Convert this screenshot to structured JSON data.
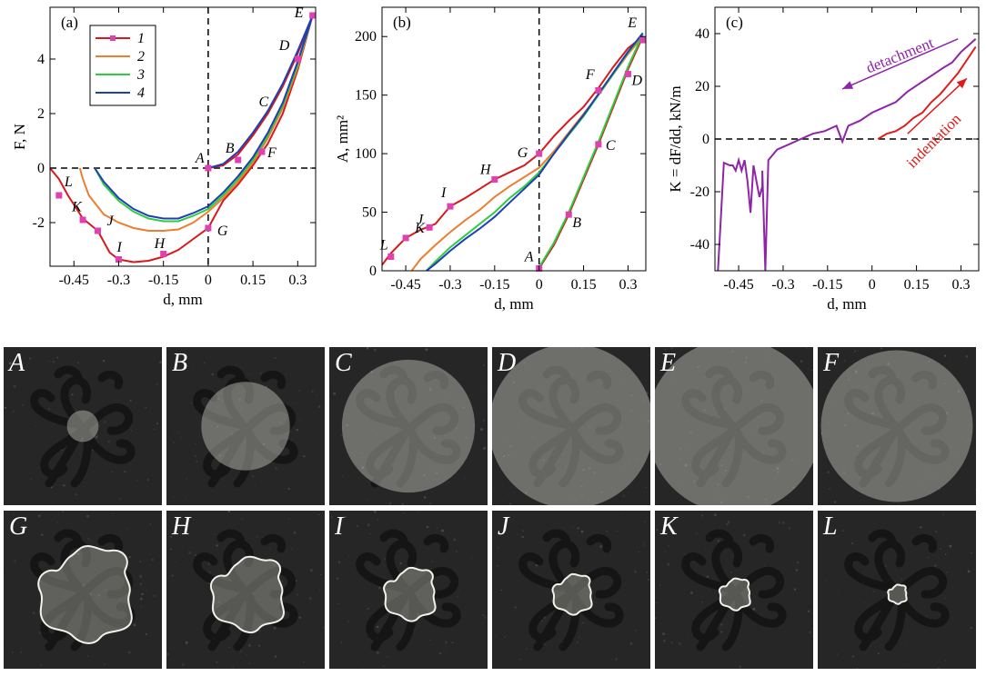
{
  "chart_data": [
    {
      "id": "a",
      "type": "line",
      "panel_label": "(a)",
      "xlabel": "d, mm",
      "ylabel": "F, N",
      "xlim": [
        -0.53,
        0.36
      ],
      "ylim": [
        -3.6,
        5.9
      ],
      "xticks": [
        -0.45,
        -0.3,
        -0.15,
        0,
        0.15,
        0.3
      ],
      "xtick_labels": [
        "-0.45",
        "-0.3",
        "-0.15",
        "0",
        "0.15",
        "0.3"
      ],
      "yticks": [
        -2,
        0,
        2,
        4
      ],
      "ytick_labels": [
        "-2",
        "0",
        "2",
        "4"
      ],
      "legend": {
        "position": "top-left",
        "entries": [
          "1",
          "2",
          "3",
          "4"
        ]
      },
      "series": [
        {
          "name": "1",
          "color": "#d7191c",
          "markers": true,
          "x": [
            0,
            0.05,
            0.1,
            0.15,
            0.2,
            0.25,
            0.3,
            0.35,
            0.35,
            0.3,
            0.25,
            0.2,
            0.15,
            0.1,
            0.05,
            0,
            -0.05,
            -0.1,
            -0.15,
            -0.2,
            -0.25,
            -0.3,
            -0.33,
            -0.37,
            -0.42,
            -0.47,
            -0.5,
            -0.53
          ],
          "y": [
            0,
            0.1,
            0.5,
            1.2,
            2.0,
            3.0,
            4.2,
            5.6,
            5.6,
            3.6,
            2.0,
            0.9,
            0.1,
            -0.6,
            -1.2,
            -2.2,
            -2.6,
            -3.0,
            -3.25,
            -3.4,
            -3.45,
            -3.35,
            -3.1,
            -2.3,
            -1.85,
            -1.0,
            -0.4,
            0
          ]
        },
        {
          "name": "2",
          "color": "#ed7d31",
          "markers": false,
          "x": [
            0.35,
            0.3,
            0.25,
            0.2,
            0.15,
            0.1,
            0.05,
            0,
            -0.05,
            -0.1,
            -0.15,
            -0.2,
            -0.25,
            -0.3,
            -0.35,
            -0.4,
            -0.42,
            -0.43
          ],
          "y": [
            5.6,
            3.7,
            2.2,
            1.1,
            0.2,
            -0.5,
            -1.1,
            -1.6,
            -2.0,
            -2.25,
            -2.3,
            -2.3,
            -2.2,
            -2.0,
            -1.7,
            -1.0,
            -0.4,
            0
          ]
        },
        {
          "name": "3",
          "color": "#2ecc40",
          "markers": false,
          "x": [
            0.35,
            0.3,
            0.25,
            0.2,
            0.15,
            0.1,
            0.05,
            0,
            -0.05,
            -0.1,
            -0.15,
            -0.2,
            -0.25,
            -0.3,
            -0.35,
            -0.38
          ],
          "y": [
            5.6,
            3.8,
            2.3,
            1.2,
            0.3,
            -0.4,
            -1.0,
            -1.5,
            -1.75,
            -1.95,
            -1.95,
            -1.85,
            -1.6,
            -1.2,
            -0.6,
            0
          ]
        },
        {
          "name": "4",
          "color": "#1f3fb4",
          "markers": false,
          "x": [
            0,
            0.05,
            0.1,
            0.15,
            0.2,
            0.25,
            0.3,
            0.35,
            0.35,
            0.3,
            0.25,
            0.2,
            0.15,
            0.1,
            0.05,
            0,
            -0.05,
            -0.1,
            -0.15,
            -0.2,
            -0.25,
            -0.3,
            -0.35,
            -0.38
          ],
          "y": [
            0,
            0.15,
            0.6,
            1.3,
            2.1,
            3.1,
            4.3,
            5.6,
            5.6,
            3.9,
            2.4,
            1.3,
            0.4,
            -0.3,
            -0.9,
            -1.4,
            -1.65,
            -1.85,
            -1.85,
            -1.75,
            -1.5,
            -1.1,
            -0.5,
            0
          ]
        }
      ],
      "point_labels": [
        {
          "text": "A",
          "x": 0,
          "y": 0,
          "dx": -14,
          "dy": -6
        },
        {
          "text": "B",
          "x": 0.1,
          "y": 0.3,
          "dx": -14,
          "dy": -8
        },
        {
          "text": "C",
          "x": 0.2,
          "y": 2.0,
          "dx": -10,
          "dy": -8
        },
        {
          "text": "D",
          "x": 0.28,
          "y": 4.0,
          "dx": -14,
          "dy": -10
        },
        {
          "text": "E",
          "x": 0.35,
          "y": 5.6,
          "dx": -20,
          "dy": 2
        },
        {
          "text": "F",
          "x": 0.18,
          "y": 0.6,
          "dx": 6,
          "dy": 6
        },
        {
          "text": "G",
          "x": 0,
          "y": -2.2,
          "dx": 10,
          "dy": 8
        },
        {
          "text": "H",
          "x": -0.15,
          "y": -3.2,
          "dx": -10,
          "dy": -8
        },
        {
          "text": "I",
          "x": -0.3,
          "y": -3.4,
          "dx": -2,
          "dy": -10
        },
        {
          "text": "J",
          "x": -0.37,
          "y": -2.3,
          "dx": 10,
          "dy": -6
        },
        {
          "text": "K",
          "x": -0.42,
          "y": -1.85,
          "dx": -12,
          "dy": -8
        },
        {
          "text": "L",
          "x": -0.5,
          "y": -1.0,
          "dx": 6,
          "dy": -10
        }
      ],
      "marker_points": [
        {
          "x": 0,
          "y": 0
        },
        {
          "x": 0.1,
          "y": 0.3
        },
        {
          "x": 0.18,
          "y": 0.6
        },
        {
          "x": 0.3,
          "y": 4.0
        },
        {
          "x": 0.35,
          "y": 5.6
        },
        {
          "x": 0,
          "y": -2.2
        },
        {
          "x": -0.15,
          "y": -3.15
        },
        {
          "x": -0.3,
          "y": -3.35
        },
        {
          "x": -0.37,
          "y": -2.3
        },
        {
          "x": -0.42,
          "y": -1.9
        },
        {
          "x": -0.5,
          "y": -1.0
        }
      ]
    },
    {
      "id": "b",
      "type": "line",
      "panel_label": "(b)",
      "xlabel": "d, mm",
      "ylabel": "A, mm²",
      "xlim": [
        -0.53,
        0.36
      ],
      "ylim": [
        0,
        225
      ],
      "xticks": [
        -0.45,
        -0.3,
        -0.15,
        0,
        0.15,
        0.3
      ],
      "xtick_labels": [
        "-0.45",
        "-0.3",
        "-0.15",
        "0",
        "0.15",
        "0.3"
      ],
      "yticks": [
        0,
        50,
        100,
        150,
        200
      ],
      "ytick_labels": [
        "0",
        "50",
        "100",
        "150",
        "200"
      ],
      "series": [
        {
          "name": "1",
          "color": "#d7191c",
          "markers": true,
          "x": [
            0,
            0.05,
            0.1,
            0.15,
            0.2,
            0.25,
            0.3,
            0.35,
            0.35,
            0.3,
            0.25,
            0.2,
            0.15,
            0.1,
            0.05,
            0,
            -0.05,
            -0.1,
            -0.15,
            -0.2,
            -0.25,
            -0.3,
            -0.35,
            -0.4,
            -0.45,
            -0.5,
            -0.53
          ],
          "y": [
            2,
            22,
            48,
            78,
            108,
            140,
            172,
            200,
            200,
            190,
            174,
            156,
            140,
            128,
            115,
            100,
            90,
            84,
            78,
            70,
            62,
            55,
            40,
            35,
            28,
            15,
            5
          ]
        },
        {
          "name": "2",
          "color": "#ed7d31",
          "markers": false,
          "x": [
            0.35,
            0.3,
            0.25,
            0.2,
            0.15,
            0.1,
            0.05,
            0,
            -0.05,
            -0.1,
            -0.15,
            -0.2,
            -0.25,
            -0.3,
            -0.35,
            -0.4,
            -0.43
          ],
          "y": [
            200,
            185,
            168,
            150,
            134,
            118,
            102,
            88,
            80,
            72,
            63,
            52,
            43,
            33,
            22,
            10,
            0
          ]
        },
        {
          "name": "3",
          "color": "#2ecc40",
          "markers": false,
          "x": [
            0,
            0.05,
            0.1,
            0.15,
            0.2,
            0.25,
            0.3,
            0.35,
            0.35,
            0.3,
            0.25,
            0.2,
            0.15,
            0.1,
            0.05,
            0,
            -0.05,
            -0.1,
            -0.15,
            -0.2,
            -0.25,
            -0.3,
            -0.35,
            -0.38
          ],
          "y": [
            3,
            24,
            50,
            80,
            110,
            142,
            174,
            202,
            202,
            186,
            168,
            150,
            132,
            116,
            100,
            84,
            72,
            62,
            50,
            40,
            30,
            20,
            8,
            0
          ]
        },
        {
          "name": "4",
          "color": "#1f3fb4",
          "markers": false,
          "x": [
            0.35,
            0.3,
            0.25,
            0.2,
            0.15,
            0.1,
            0.05,
            0,
            -0.05,
            -0.1,
            -0.15,
            -0.2,
            -0.25,
            -0.3,
            -0.35,
            -0.38
          ],
          "y": [
            203,
            187,
            169,
            151,
            133,
            117,
            100,
            82,
            70,
            58,
            46,
            36,
            27,
            17,
            6,
            0
          ]
        }
      ],
      "point_labels": [
        {
          "text": "A",
          "x": 0,
          "y": 2,
          "dx": -16,
          "dy": -8
        },
        {
          "text": "B",
          "x": 0.1,
          "y": 48,
          "dx": 4,
          "dy": 14
        },
        {
          "text": "C",
          "x": 0.2,
          "y": 108,
          "dx": 8,
          "dy": 6
        },
        {
          "text": "D",
          "x": 0.3,
          "y": 168,
          "dx": 4,
          "dy": 12
        },
        {
          "text": "E",
          "x": 0.33,
          "y": 200,
          "dx": -10,
          "dy": -10
        },
        {
          "text": "F",
          "x": 0.2,
          "y": 156,
          "dx": -14,
          "dy": -10
        },
        {
          "text": "G",
          "x": 0,
          "y": 100,
          "dx": -24,
          "dy": 4
        },
        {
          "text": "H",
          "x": -0.15,
          "y": 78,
          "dx": -16,
          "dy": -6
        },
        {
          "text": "I",
          "x": -0.3,
          "y": 55,
          "dx": -10,
          "dy": -10
        },
        {
          "text": "J",
          "x": -0.37,
          "y": 37,
          "dx": -14,
          "dy": -4
        },
        {
          "text": "K",
          "x": -0.45,
          "y": 28,
          "dx": 10,
          "dy": -6
        },
        {
          "text": "L",
          "x": -0.5,
          "y": 12,
          "dx": -12,
          "dy": -8
        }
      ],
      "marker_points": [
        {
          "x": 0,
          "y": 2
        },
        {
          "x": 0.1,
          "y": 48
        },
        {
          "x": 0.2,
          "y": 108
        },
        {
          "x": 0.3,
          "y": 168
        },
        {
          "x": 0.35,
          "y": 197
        },
        {
          "x": 0.2,
          "y": 154
        },
        {
          "x": 0,
          "y": 100
        },
        {
          "x": -0.15,
          "y": 78
        },
        {
          "x": -0.3,
          "y": 55
        },
        {
          "x": -0.37,
          "y": 37
        },
        {
          "x": -0.45,
          "y": 28
        },
        {
          "x": -0.5,
          "y": 12
        }
      ]
    },
    {
      "id": "c",
      "type": "line",
      "panel_label": "(c)",
      "xlabel": "d, mm",
      "ylabel": "K = dF/dd, kN/m",
      "xlim": [
        -0.53,
        0.36
      ],
      "ylim": [
        -50,
        50
      ],
      "xticks": [
        -0.45,
        -0.3,
        -0.15,
        0,
        0.15,
        0.3
      ],
      "xtick_labels": [
        "-0.45",
        "-0.3",
        "-0.15",
        "0",
        "0.15",
        "0.3"
      ],
      "yticks": [
        -40,
        -20,
        0,
        20,
        40
      ],
      "ytick_labels": [
        "-40",
        "-20",
        "0",
        "20",
        "40"
      ],
      "annotations": [
        {
          "text": "detachment",
          "color": "#8e24aa"
        },
        {
          "text": "indentation",
          "color": "#e01b1b"
        }
      ],
      "series": [
        {
          "name": "detachment",
          "color": "#8e24aa",
          "x": [
            0.35,
            0.33,
            0.3,
            0.27,
            0.24,
            0.2,
            0.16,
            0.12,
            0.08,
            0.04,
            0,
            -0.04,
            -0.08,
            -0.1,
            -0.12,
            -0.16,
            -0.2,
            -0.24,
            -0.28,
            -0.32,
            -0.35,
            -0.36,
            -0.37,
            -0.37,
            -0.38,
            -0.4,
            -0.41,
            -0.42,
            -0.43,
            -0.44,
            -0.45,
            -0.46,
            -0.47,
            -0.48,
            -0.5,
            -0.51,
            -0.52
          ],
          "y": [
            38,
            36,
            33,
            29,
            27,
            24,
            21,
            18,
            14,
            12,
            10,
            7,
            5,
            -1,
            5,
            3,
            2,
            0,
            -2,
            -4,
            -8,
            -50,
            -12,
            -18,
            -22,
            -10,
            -28,
            -16,
            -8,
            -12,
            -8,
            -12,
            -10,
            -10,
            -9,
            -30,
            -50
          ]
        },
        {
          "name": "indentation",
          "color": "#e01b1b",
          "x": [
            0.02,
            0.05,
            0.08,
            0.11,
            0.14,
            0.17,
            0.2,
            0.23,
            0.26,
            0.29,
            0.32,
            0.35
          ],
          "y": [
            0,
            2,
            3,
            5,
            8,
            10,
            14,
            17,
            21,
            25,
            30,
            35
          ]
        }
      ]
    }
  ],
  "photos": [
    {
      "label": "A",
      "type": "disk",
      "radius": 0.1
    },
    {
      "label": "B",
      "type": "disk",
      "radius": 0.28
    },
    {
      "label": "C",
      "type": "disk",
      "radius": 0.42
    },
    {
      "label": "D",
      "type": "disk",
      "radius": 0.52
    },
    {
      "label": "E",
      "type": "disk",
      "radius": 0.55
    },
    {
      "label": "F",
      "type": "disk",
      "radius": 0.48
    },
    {
      "label": "G",
      "type": "blob",
      "scale": 1.0
    },
    {
      "label": "H",
      "type": "blob",
      "scale": 0.78
    },
    {
      "label": "I",
      "type": "blob",
      "scale": 0.55
    },
    {
      "label": "J",
      "type": "blob",
      "scale": 0.42
    },
    {
      "label": "K",
      "type": "blob",
      "scale": 0.33
    },
    {
      "label": "L",
      "type": "blob",
      "scale": 0.2
    }
  ]
}
